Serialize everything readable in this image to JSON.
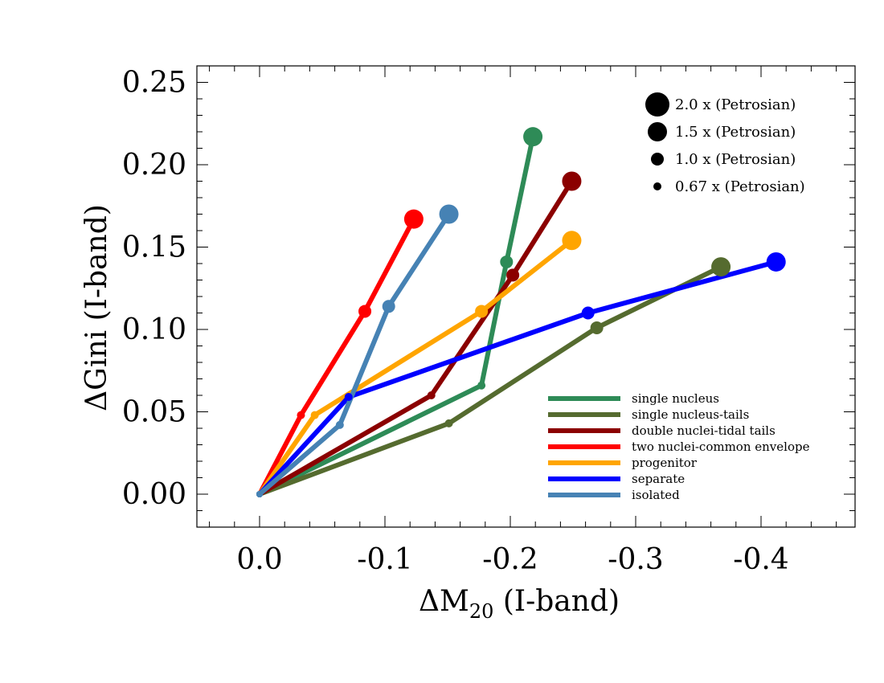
{
  "chart_data": {
    "type": "line",
    "xlabel": {
      "prefix": "ΔM",
      "sub": "20",
      "suffix": " (I-band)"
    },
    "ylabel": "ΔGini (I-band)",
    "xlim": [
      0.05,
      -0.475
    ],
    "ylim": [
      -0.02,
      0.26
    ],
    "x_ticks": [
      0.0,
      -0.1,
      -0.2,
      -0.3,
      -0.4
    ],
    "x_tick_labels": [
      "0.0",
      "-0.1",
      "-0.2",
      "-0.3",
      "-0.4"
    ],
    "y_ticks": [
      0.0,
      0.05,
      0.1,
      0.15,
      0.2,
      0.25
    ],
    "y_tick_labels": [
      "0.00",
      "0.05",
      "0.10",
      "0.15",
      "0.20",
      "0.25"
    ],
    "grid": false,
    "legend_position": "lower-right",
    "size_legend_position": "upper-right",
    "aperture_sizes": [
      {
        "label": "2.0 x (Petrosian)",
        "scale": 2.0
      },
      {
        "label": "1.5 x (Petrosian)",
        "scale": 1.5
      },
      {
        "label": "1.0 x (Petrosian)",
        "scale": 1.0
      },
      {
        "label": "0.67 x (Petrosian)",
        "scale": 0.67
      }
    ],
    "series": [
      {
        "name": "single nucleus",
        "color": "#2E8B57",
        "x": [
          0.0,
          -0.177,
          -0.197,
          -0.218
        ],
        "y": [
          0.0,
          0.066,
          0.141,
          0.217
        ]
      },
      {
        "name": "single nucleus-tails",
        "color": "#556B2F",
        "x": [
          0.0,
          -0.151,
          -0.269,
          -0.368
        ],
        "y": [
          0.0,
          0.043,
          0.101,
          0.138
        ]
      },
      {
        "name": "double nuclei-tidal tails",
        "color": "#8B0000",
        "x": [
          0.0,
          -0.137,
          -0.202,
          -0.249
        ],
        "y": [
          0.0,
          0.06,
          0.133,
          0.19
        ]
      },
      {
        "name": "two nuclei-common envelope",
        "color": "#FF0000",
        "x": [
          0.0,
          -0.033,
          -0.084,
          -0.123
        ],
        "y": [
          0.0,
          0.048,
          0.111,
          0.167
        ]
      },
      {
        "name": "progenitor",
        "color": "#FFA500",
        "x": [
          0.0,
          -0.044,
          -0.177,
          -0.249
        ],
        "y": [
          0.0,
          0.048,
          0.111,
          0.154
        ]
      },
      {
        "name": "separate",
        "color": "#0000FF",
        "x": [
          0.0,
          -0.071,
          -0.262,
          -0.412
        ],
        "y": [
          0.0,
          0.059,
          0.11,
          0.141
        ]
      },
      {
        "name": "isolated",
        "color": "#4682B4",
        "x": [
          0.0,
          -0.064,
          -0.103,
          -0.151
        ],
        "y": [
          0.0,
          0.042,
          0.114,
          0.17
        ]
      }
    ]
  }
}
